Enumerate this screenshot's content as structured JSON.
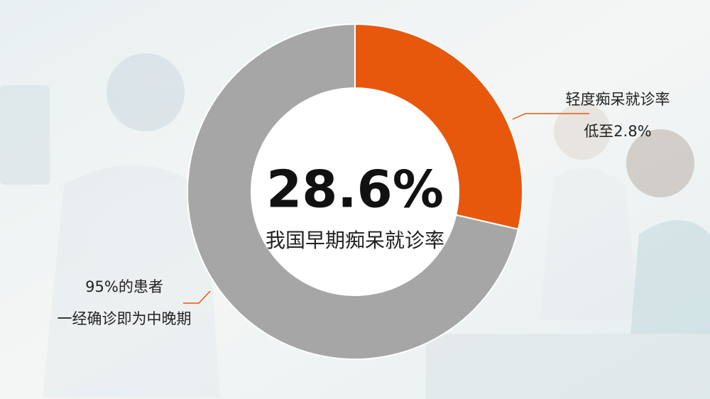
{
  "chart_data": {
    "type": "donut",
    "categories": [
      null,
      null
    ],
    "values": [
      28.6,
      71.4
    ],
    "value_labels": [
      "28.6%",
      null
    ],
    "colors": [
      "#e8580c",
      "#a6a6a6"
    ],
    "center_caption": "我国早期痴呆就诊率",
    "annotations": [
      {
        "lines": [
          "轻度痴呆就诊率",
          "低至2.8%"
        ]
      },
      {
        "lines": [
          "95%的患者",
          "一经确诊即为中晚期"
        ]
      }
    ]
  }
}
